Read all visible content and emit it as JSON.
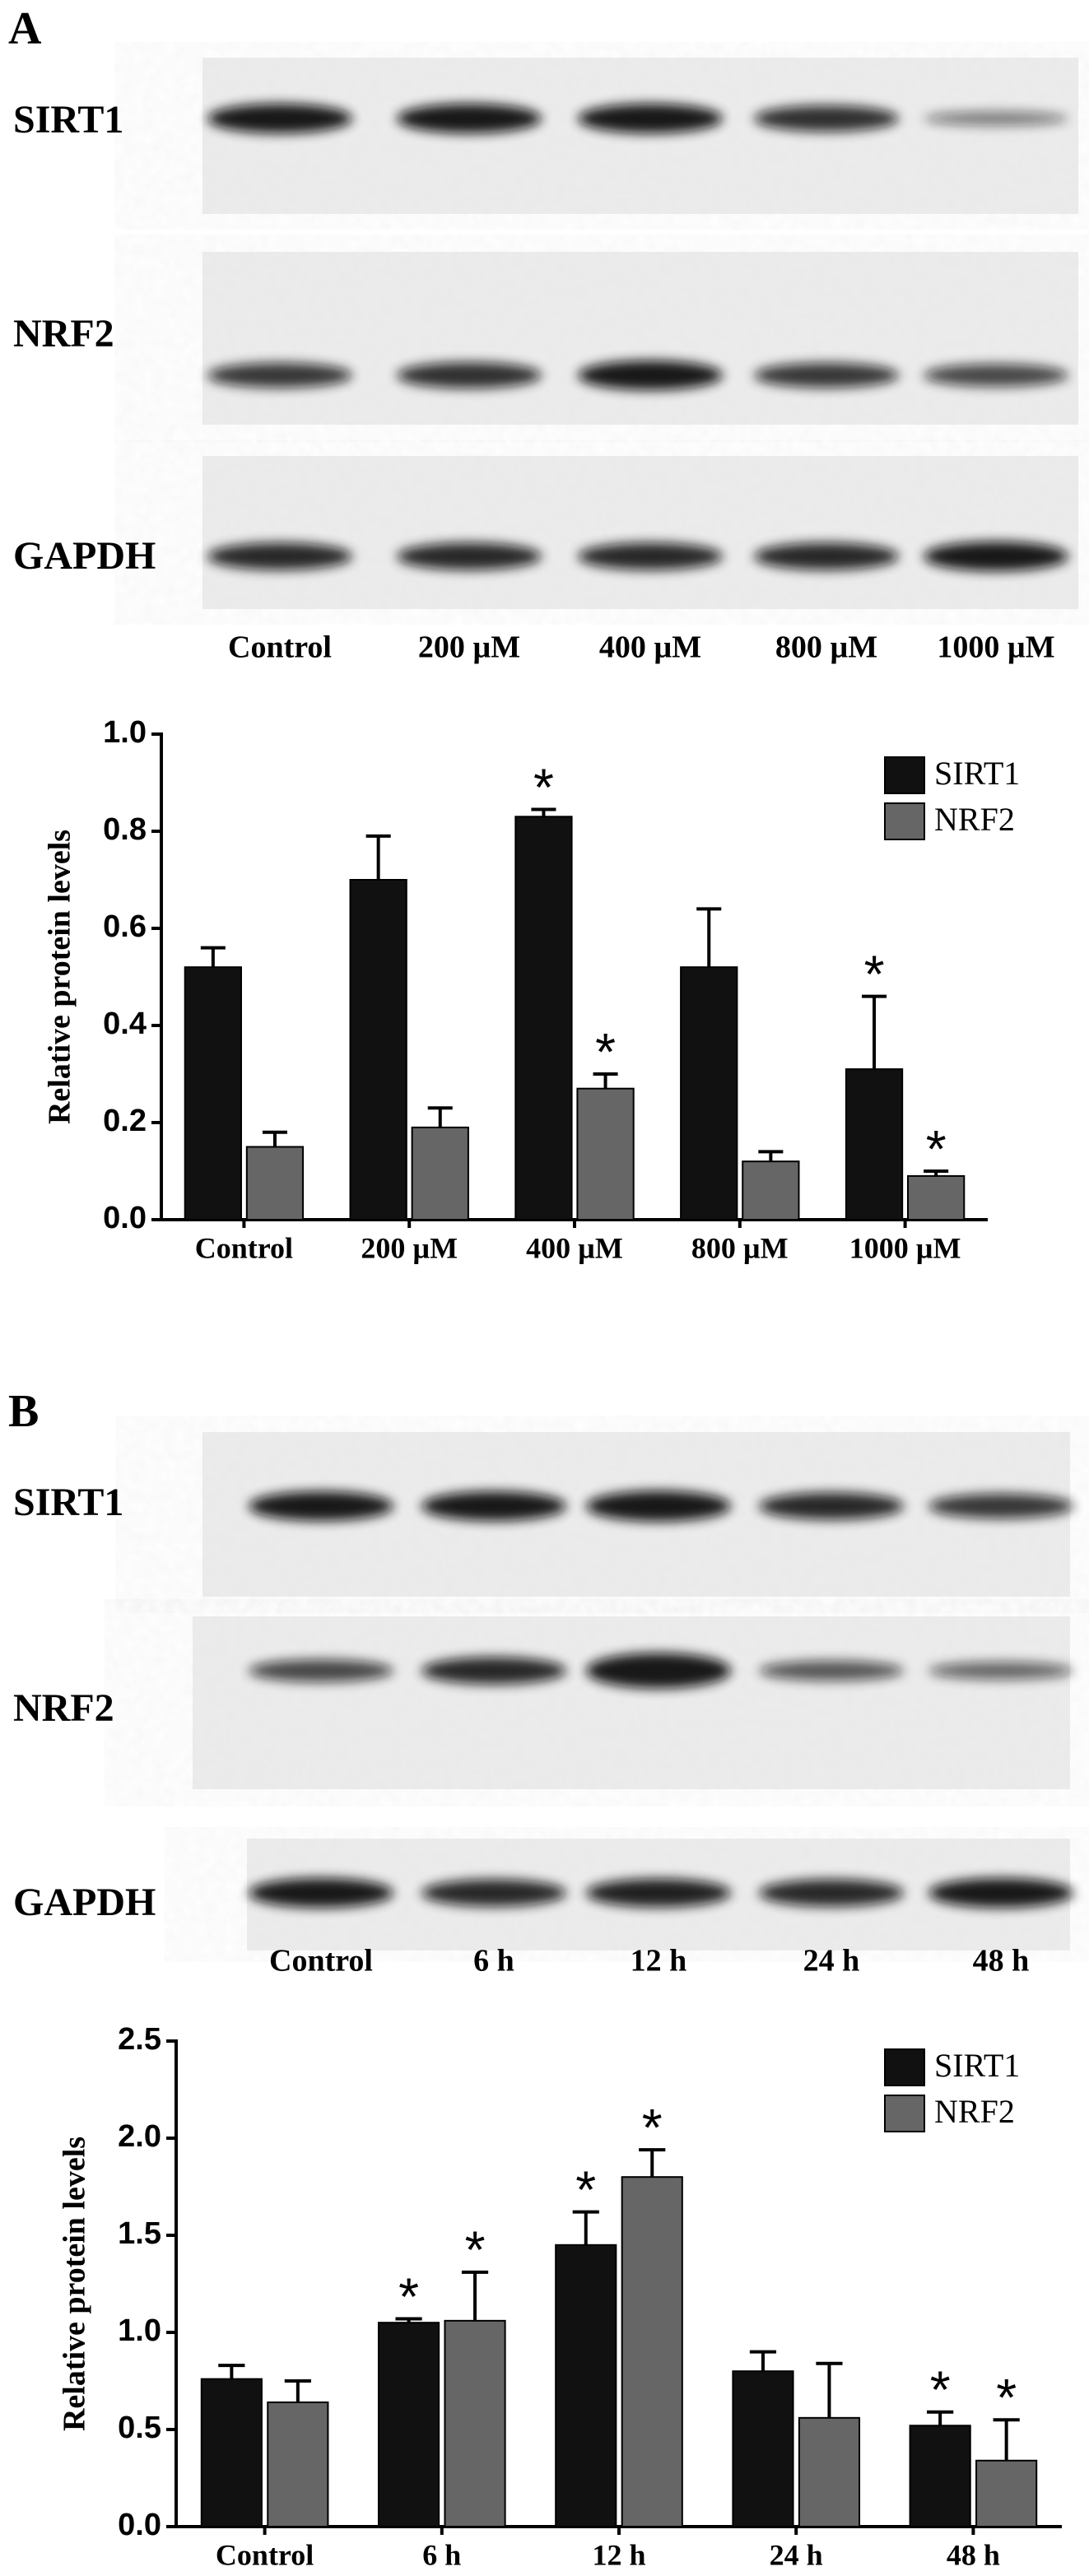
{
  "blots": [
    {
      "label": "A",
      "rows": [
        "SIRT1",
        "NRF2",
        "GAPDH"
      ],
      "lanes": [
        "Control",
        "200 µM",
        "400 µM",
        "800 µM",
        "1000 µM"
      ]
    },
    {
      "label": "B",
      "rows": [
        "SIRT1",
        "NRF2",
        "GAPDH"
      ],
      "lanes": [
        "Control",
        "6 h",
        "12 h",
        "24 h",
        "48 h"
      ]
    }
  ],
  "chart_data": [
    {
      "type": "bar",
      "y_label": "Relative protein levels",
      "categories": [
        "Control",
        "200 µM",
        "400 µM",
        "800 µM",
        "1000 µM"
      ],
      "series": [
        {
          "name": "SIRT1",
          "color": "#111111",
          "values": [
            0.52,
            0.7,
            0.83,
            0.52,
            0.31
          ],
          "errors": [
            0.04,
            0.09,
            0.015,
            0.12,
            0.15
          ],
          "markers": [
            null,
            null,
            "*",
            null,
            "*"
          ]
        },
        {
          "name": "NRF2",
          "color": "#666666",
          "values": [
            0.15,
            0.19,
            0.27,
            0.12,
            0.09
          ],
          "errors": [
            0.03,
            0.04,
            0.03,
            0.02,
            0.01
          ],
          "markers": [
            null,
            null,
            "*",
            null,
            "*"
          ]
        }
      ],
      "ylim": [
        0,
        1
      ],
      "yticks": [
        {
          "value": 0,
          "label": "0.0"
        },
        0.2,
        0.4,
        0.6,
        0.8,
        {
          "value": 1,
          "label": "1.0"
        }
      ],
      "legend": "upper right"
    },
    {
      "type": "bar",
      "y_label": "Relative protein levels",
      "categories": [
        "Control",
        "6 h",
        "12 h",
        "24 h",
        "48 h"
      ],
      "series": [
        {
          "name": "SIRT1",
          "color": "#111111",
          "values": [
            0.76,
            1.05,
            1.45,
            0.8,
            0.52
          ],
          "errors": [
            0.07,
            0.02,
            0.17,
            0.1,
            0.07
          ],
          "markers": [
            null,
            "*",
            "*",
            null,
            "*"
          ]
        },
        {
          "name": "NRF2",
          "color": "#666666",
          "values": [
            0.64,
            1.06,
            1.8,
            0.56,
            0.34
          ],
          "errors": [
            0.11,
            0.25,
            0.14,
            0.28,
            0.21
          ],
          "markers": [
            null,
            "*",
            "*",
            null,
            "*"
          ]
        }
      ],
      "ylim": [
        0,
        2.5
      ],
      "yticks": [
        {
          "value": 0,
          "label": "0.0"
        },
        0.5,
        {
          "value": 1,
          "label": "1.0"
        },
        1.5,
        {
          "value": 2,
          "label": "2.0"
        },
        2.5
      ],
      "legend": "upper right"
    }
  ]
}
